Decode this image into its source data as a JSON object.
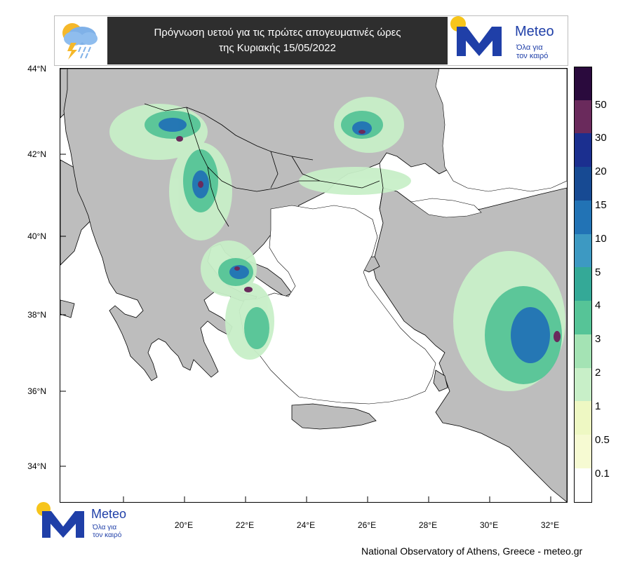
{
  "title": {
    "line1": "Πρόγνωση υετού για τις πρώτες απογευματινές ώρες",
    "line2": "της Κυριακής 15/05/2022"
  },
  "logo": {
    "brand": "Meteo",
    "tagline_line1": "Όλα για",
    "tagline_line2": "τον καιρό",
    "dot_color": "#f7c51b",
    "mark_color": "#1f3fa8"
  },
  "weather_icon": "rain-thunder-cloud-icon",
  "map": {
    "lat_labels": [
      "44°N",
      "42°N",
      "40°N",
      "38°N",
      "36°N",
      "34°N"
    ],
    "lon_labels": [
      "20°E",
      "22°E",
      "24°E",
      "26°E",
      "28°E",
      "30°E",
      "32°E"
    ],
    "land_color": "#bdbdbd",
    "sea_color": "#ffffff"
  },
  "colorbar": {
    "labels": [
      "50",
      "30",
      "20",
      "15",
      "10",
      "5",
      "4",
      "3",
      "2",
      "1",
      "0.5",
      "0.1"
    ],
    "colors": [
      "#2a0a3d",
      "#6a2a5c",
      "#1b2f8f",
      "#174a93",
      "#2273b5",
      "#3d99c2",
      "#34a997",
      "#56c497",
      "#a4e3b4",
      "#c8efc8",
      "#eef8c3",
      "#f6fad2",
      "#ffffff"
    ]
  },
  "footer": {
    "credit": "National Observatory of Athens, Greece - meteo.gr"
  }
}
